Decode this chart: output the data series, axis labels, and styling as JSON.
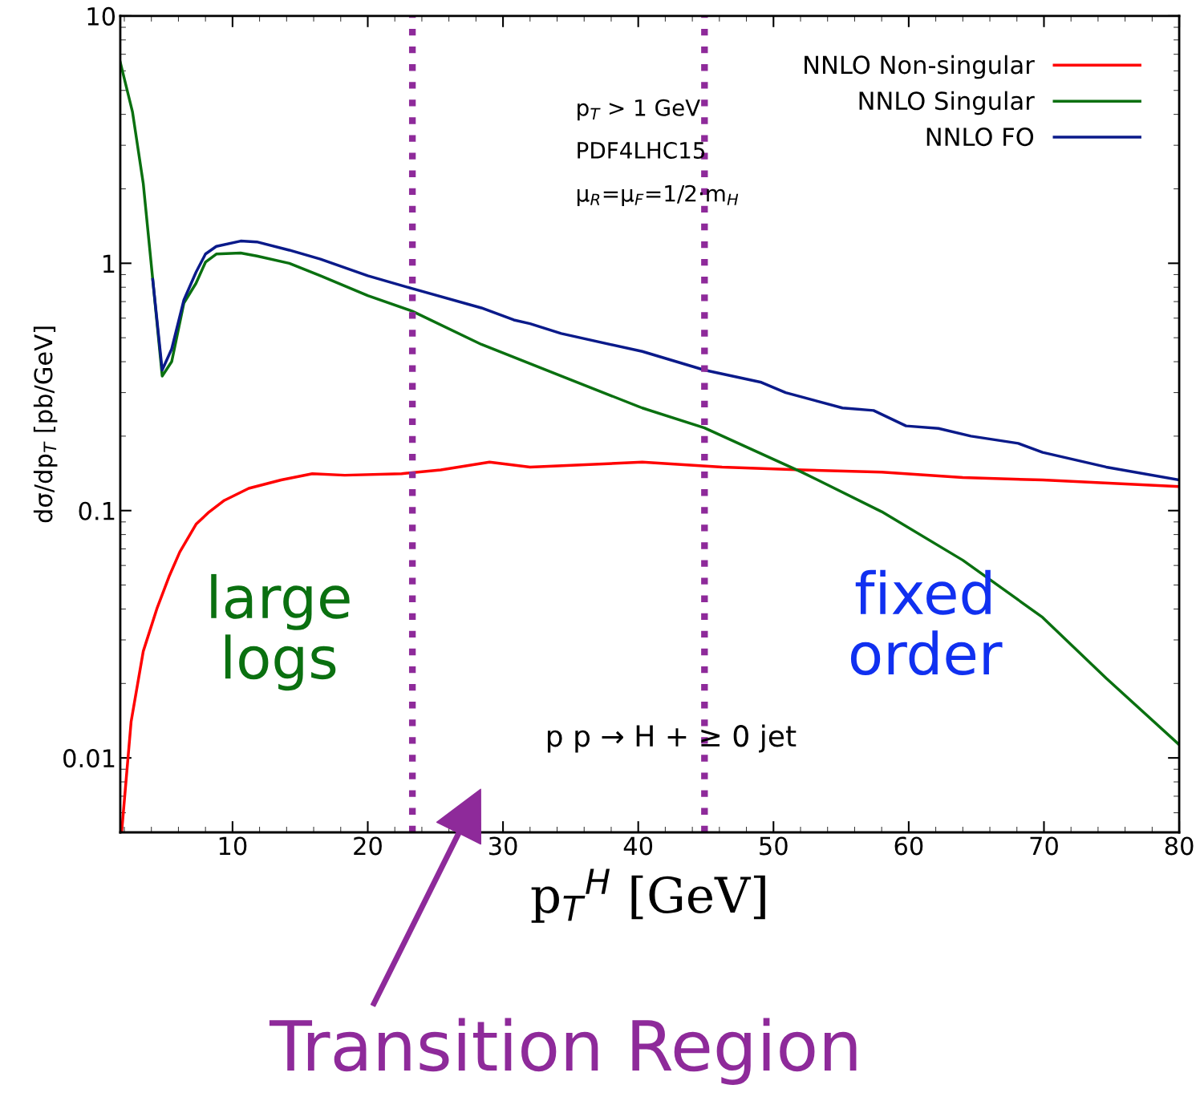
{
  "chart_data": {
    "type": "line",
    "xlabel": "p$_{T}$$^{H}$ [GeV]",
    "ylabel": "dσ/dp$_{T}$ [pb/GeV]",
    "log": "y",
    "xlim": [
      1.7,
      80
    ],
    "ylim": [
      0.005,
      10
    ],
    "xticks": [
      10,
      20,
      30,
      40,
      50,
      60,
      70,
      80
    ],
    "yticks": [
      {
        "value": 0.01,
        "label": "0.01"
      },
      {
        "value": 0.1,
        "label": "0.1"
      },
      1,
      10
    ],
    "legend": "top right",
    "grid": false,
    "line_style": "solid",
    "marker": "none",
    "series": [
      {
        "name": "NNLO Non-singular",
        "color": "#ff0000",
        "x": [
          1.8,
          2.5,
          3.4,
          4.4,
          5.3,
          6.1,
          7.3,
          8.2,
          9.4,
          11.2,
          13.6,
          15.9,
          18.3,
          22.5,
          25.4,
          29,
          32,
          40.3,
          46.2,
          52.1,
          58,
          64,
          69.9,
          80
        ],
        "values": [
          0.005,
          0.014,
          0.027,
          0.04,
          0.054,
          0.068,
          0.088,
          0.098,
          0.11,
          0.123,
          0.133,
          0.141,
          0.139,
          0.141,
          0.146,
          0.157,
          0.15,
          0.157,
          0.15,
          0.146,
          0.143,
          0.136,
          0.133,
          0.125
        ]
      },
      {
        "name": "NNLO Singular",
        "color": "#0a7010",
        "x": [
          1.7,
          2.6,
          3.4,
          4.1,
          4.8,
          5.5,
          6.4,
          7.3,
          8.0,
          8.8,
          10.6,
          11.8,
          14.2,
          16.5,
          20,
          23.3,
          28.4,
          34.3,
          40.3,
          44.9,
          52.1,
          58,
          64,
          69.9,
          74.6,
          80
        ],
        "values": [
          6.5,
          4.1,
          2.1,
          0.86,
          0.35,
          0.4,
          0.69,
          0.83,
          1.01,
          1.09,
          1.1,
          1.07,
          1.0,
          0.89,
          0.74,
          0.64,
          0.47,
          0.35,
          0.26,
          0.216,
          0.143,
          0.099,
          0.063,
          0.037,
          0.021,
          0.0113
        ]
      },
      {
        "name": "NNLO FO",
        "color": "#0a1a8a",
        "x": [
          4.1,
          4.8,
          5.5,
          6.4,
          7.3,
          8.0,
          8.8,
          10.6,
          11.8,
          14.2,
          16.5,
          20,
          23.3,
          28.4,
          30.8,
          32,
          34.3,
          40.3,
          44.9,
          49.1,
          50.9,
          55.1,
          57.4,
          59.8,
          62.2,
          64.6,
          68.1,
          69.9,
          74.6,
          80
        ],
        "values": [
          0.86,
          0.37,
          0.45,
          0.71,
          0.92,
          1.09,
          1.17,
          1.23,
          1.22,
          1.13,
          1.04,
          0.89,
          0.79,
          0.66,
          0.59,
          0.57,
          0.52,
          0.44,
          0.37,
          0.33,
          0.3,
          0.26,
          0.254,
          0.22,
          0.215,
          0.2,
          0.187,
          0.172,
          0.15,
          0.133
        ]
      }
    ],
    "ref_lines": [
      {
        "axis": "x",
        "value": 23.3,
        "color": "#8e2a9a",
        "line_style": "dotted"
      },
      {
        "axis": "x",
        "value": 44.9,
        "color": "#8e2a9a",
        "line_style": "dotted"
      }
    ],
    "annotations": [
      "p$_{T}$ > 1 GeV",
      "PDF4LHC15",
      "μ$_{R}$=μ$_{F}$=1/2·m$_{H}$",
      "large\nlogs",
      "fixed\norder",
      "p p → H + ≥ 0 jet",
      "Transition Region"
    ]
  }
}
